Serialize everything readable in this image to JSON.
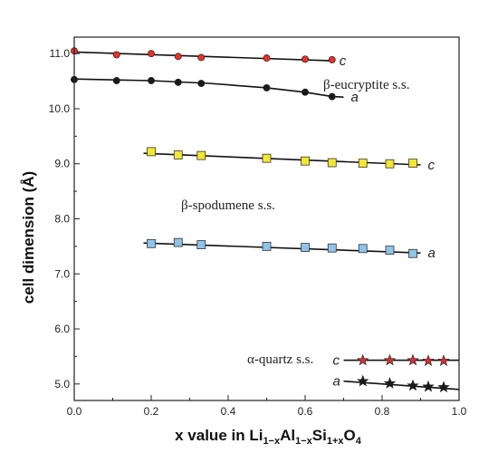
{
  "chart_data": {
    "type": "scatter",
    "ylabel": "cell dimension (Å)",
    "xlabel_parts": {
      "base": "x value in Li",
      "sub1": "1−x",
      "mid1": "Al",
      "sub2": "1−x",
      "mid2": "Si",
      "sub3": "1+x",
      "mid3": "O",
      "sub4": "4"
    },
    "xlim": [
      0.0,
      1.0
    ],
    "ylim": [
      4.7,
      11.3
    ],
    "x_ticks": [
      "0.0",
      "0.2",
      "0.4",
      "0.6",
      "0.8",
      "1.0"
    ],
    "y_ticks": [
      "5.0",
      "6.0",
      "7.0",
      "8.0",
      "9.0",
      "10.0",
      "11.0"
    ],
    "grid": false,
    "groups": [
      {
        "label": "β-eucryptite s.s."
      },
      {
        "label": "β-spodumene s.s."
      },
      {
        "label": "α-quartz s.s."
      }
    ],
    "series": [
      {
        "tag": "c",
        "group": "β-eucryptite s.s.",
        "marker": "circle",
        "color": "#e8322a",
        "x": [
          0.0,
          0.11,
          0.2,
          0.27,
          0.33,
          0.5,
          0.6,
          0.67
        ],
        "y": [
          11.05,
          10.98,
          11.0,
          10.95,
          10.93,
          10.92,
          10.9,
          10.89
        ],
        "fit": [
          [
            0.0,
            11.03
          ],
          [
            0.67,
            10.87
          ]
        ]
      },
      {
        "tag": "a",
        "group": "β-eucryptite s.s.",
        "marker": "circle",
        "color": "#1a1a1a",
        "x": [
          0.0,
          0.11,
          0.2,
          0.27,
          0.33,
          0.5,
          0.6,
          0.67
        ],
        "y": [
          10.53,
          10.51,
          10.51,
          10.48,
          10.46,
          10.38,
          10.3,
          10.22
        ],
        "fit": [
          [
            0.0,
            10.54
          ],
          [
            0.2,
            10.51
          ],
          [
            0.35,
            10.46
          ],
          [
            0.5,
            10.38
          ],
          [
            0.6,
            10.3
          ],
          [
            0.67,
            10.22
          ],
          [
            0.7,
            10.21
          ]
        ]
      },
      {
        "tag": "c",
        "group": "β-spodumene s.s.",
        "marker": "square",
        "color": "#f2e832",
        "x": [
          0.2,
          0.27,
          0.33,
          0.5,
          0.6,
          0.67,
          0.75,
          0.82,
          0.88
        ],
        "y": [
          9.22,
          9.16,
          9.15,
          9.1,
          9.05,
          9.02,
          9.01,
          9.0,
          9.01
        ],
        "fit": [
          [
            0.18,
            9.19
          ],
          [
            0.9,
            8.98
          ]
        ]
      },
      {
        "tag": "a",
        "group": "β-spodumene s.s.",
        "marker": "square",
        "color": "#8fc4e8",
        "x": [
          0.2,
          0.27,
          0.33,
          0.5,
          0.6,
          0.67,
          0.75,
          0.82,
          0.88
        ],
        "y": [
          7.55,
          7.57,
          7.53,
          7.5,
          7.48,
          7.47,
          7.46,
          7.43,
          7.37
        ],
        "fit": [
          [
            0.18,
            7.56
          ],
          [
            0.9,
            7.38
          ]
        ]
      },
      {
        "tag": "c",
        "group": "α-quartz s.s.",
        "marker": "star",
        "color": "#cc3333",
        "x": [
          0.75,
          0.82,
          0.88,
          0.92,
          0.96
        ],
        "y": [
          5.43,
          5.43,
          5.43,
          5.42,
          5.42
        ],
        "fit": [
          [
            0.7,
            5.43
          ],
          [
            1.0,
            5.43
          ]
        ]
      },
      {
        "tag": "a",
        "group": "α-quartz s.s.",
        "marker": "star",
        "color": "#1a1a1a",
        "x": [
          0.75,
          0.82,
          0.88,
          0.92,
          0.96
        ],
        "y": [
          5.05,
          5.01,
          4.97,
          4.95,
          4.94
        ],
        "fit": [
          [
            0.7,
            5.05
          ],
          [
            1.0,
            4.9
          ]
        ]
      }
    ]
  }
}
